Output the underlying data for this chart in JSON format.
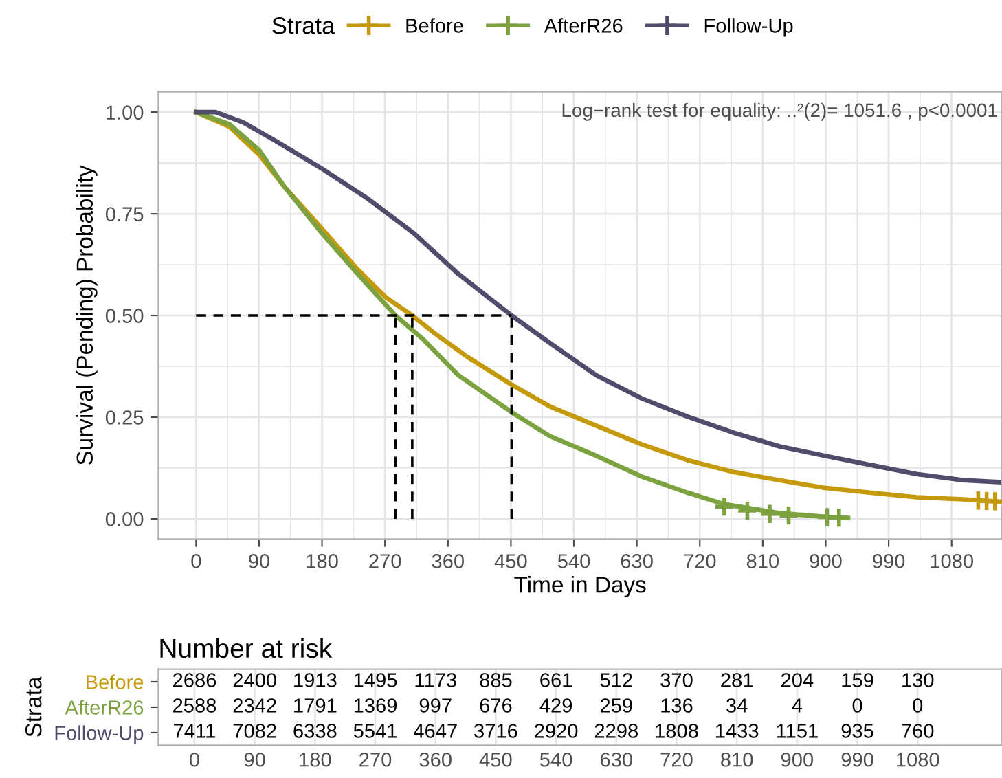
{
  "chart_data": [
    {
      "type": "line",
      "xlabel": "Time in Days",
      "ylabel": "Survival (Pending) Probability",
      "legend_title": "Strata",
      "legend": "top",
      "annotations": [
        "Log−rank test for equality: ..²(2)= 1051.6 , p<0.0001"
      ],
      "xlim": [
        -54,
        1152
      ],
      "xticks": [
        0,
        90,
        180,
        270,
        360,
        450,
        540,
        630,
        720,
        810,
        900,
        990,
        1080
      ],
      "ylim": [
        -0.05,
        1.05
      ],
      "yticks": [
        {
          "value": 0,
          "label": "0.00"
        },
        {
          "value": 0.25,
          "label": "0.25"
        },
        {
          "value": 0.5,
          "label": "0.50"
        },
        {
          "value": 0.75,
          "label": "0.75"
        },
        {
          "value": 1,
          "label": "1.00"
        }
      ],
      "grid": true,
      "series": [
        {
          "name": "Before",
          "color": "#c49a0c",
          "x": [
            0,
            48,
            90,
            126,
            179,
            231,
            271,
            309,
            342,
            388,
            451,
            506,
            572,
            637,
            703,
            768,
            834,
            899,
            965,
            1030,
            1096,
            1152
          ],
          "values": [
            1.0,
            0.964,
            0.896,
            0.817,
            0.715,
            0.613,
            0.545,
            0.5,
            0.455,
            0.398,
            0.33,
            0.276,
            0.229,
            0.183,
            0.144,
            0.115,
            0.095,
            0.076,
            0.064,
            0.053,
            0.048,
            0.042
          ]
        },
        {
          "name": "AfterR26",
          "color": "#7ba23f",
          "x": [
            0,
            48,
            90,
            126,
            179,
            231,
            285,
            323,
            375,
            451,
            506,
            572,
            637,
            703,
            755,
            834,
            899,
            932
          ],
          "values": [
            1.0,
            0.97,
            0.907,
            0.817,
            0.704,
            0.602,
            0.5,
            0.444,
            0.353,
            0.262,
            0.203,
            0.155,
            0.104,
            0.064,
            0.036,
            0.014,
            0.005,
            0.002
          ]
        },
        {
          "name": "Follow-Up",
          "color": "#4f4d6b",
          "x": [
            0,
            28,
            67,
            113,
            179,
            244,
            310,
            375,
            451,
            506,
            572,
            637,
            703,
            768,
            834,
            899,
            965,
            1030,
            1096,
            1152
          ],
          "values": [
            1.0,
            1.0,
            0.975,
            0.93,
            0.862,
            0.789,
            0.704,
            0.602,
            0.5,
            0.432,
            0.353,
            0.296,
            0.251,
            0.212,
            0.178,
            0.155,
            0.132,
            0.11,
            0.095,
            0.09
          ]
        },
        {
          "type": "scatter",
          "marker": "cross",
          "color": "#7ba23f",
          "x": [
            755,
            788,
            820,
            847,
            902,
            919
          ],
          "values": [
            0.03,
            0.02,
            0.012,
            0.008,
            0.004,
            0.003
          ]
        },
        {
          "type": "scatter",
          "marker": "cross",
          "color": "#c49a0c",
          "x": [
            1118,
            1130,
            1142
          ],
          "values": [
            0.045,
            0.044,
            0.043
          ]
        },
        {
          "type": "line",
          "line_style": "dashed",
          "color": "#000000",
          "x": [
            0,
            451
          ],
          "values": [
            0.5,
            0.5
          ]
        },
        {
          "type": "line",
          "line_style": "dashed",
          "color": "#000000",
          "x": [
            285,
            285
          ],
          "values": [
            0,
            0.5
          ]
        },
        {
          "type": "line",
          "line_style": "dashed",
          "color": "#000000",
          "x": [
            309,
            309
          ],
          "values": [
            0,
            0.5
          ]
        },
        {
          "type": "line",
          "line_style": "dashed",
          "color": "#000000",
          "x": [
            451,
            451
          ],
          "values": [
            0,
            0.5
          ]
        }
      ]
    },
    {
      "type": "heatmap",
      "title": "Number at risk",
      "ylabel": "Strata",
      "grid": "x",
      "categories": [
        "0",
        "90",
        "180",
        "270",
        "360",
        "450",
        "540",
        "630",
        "720",
        "810",
        "900",
        "990",
        "1080"
      ],
      "y_categories": [
        "Before",
        "AfterR26",
        "Follow-Up"
      ],
      "cells": [
        [
          2686,
          2400,
          1913,
          1495,
          1173,
          885,
          661,
          512,
          370,
          281,
          204,
          159,
          130
        ],
        [
          2588,
          2342,
          1791,
          1369,
          997,
          676,
          429,
          259,
          136,
          34,
          4,
          0,
          0
        ],
        [
          7411,
          7082,
          6338,
          5541,
          4647,
          3716,
          2920,
          2298,
          1808,
          1433,
          1151,
          935,
          760
        ]
      ],
      "data_labels": true
    }
  ]
}
